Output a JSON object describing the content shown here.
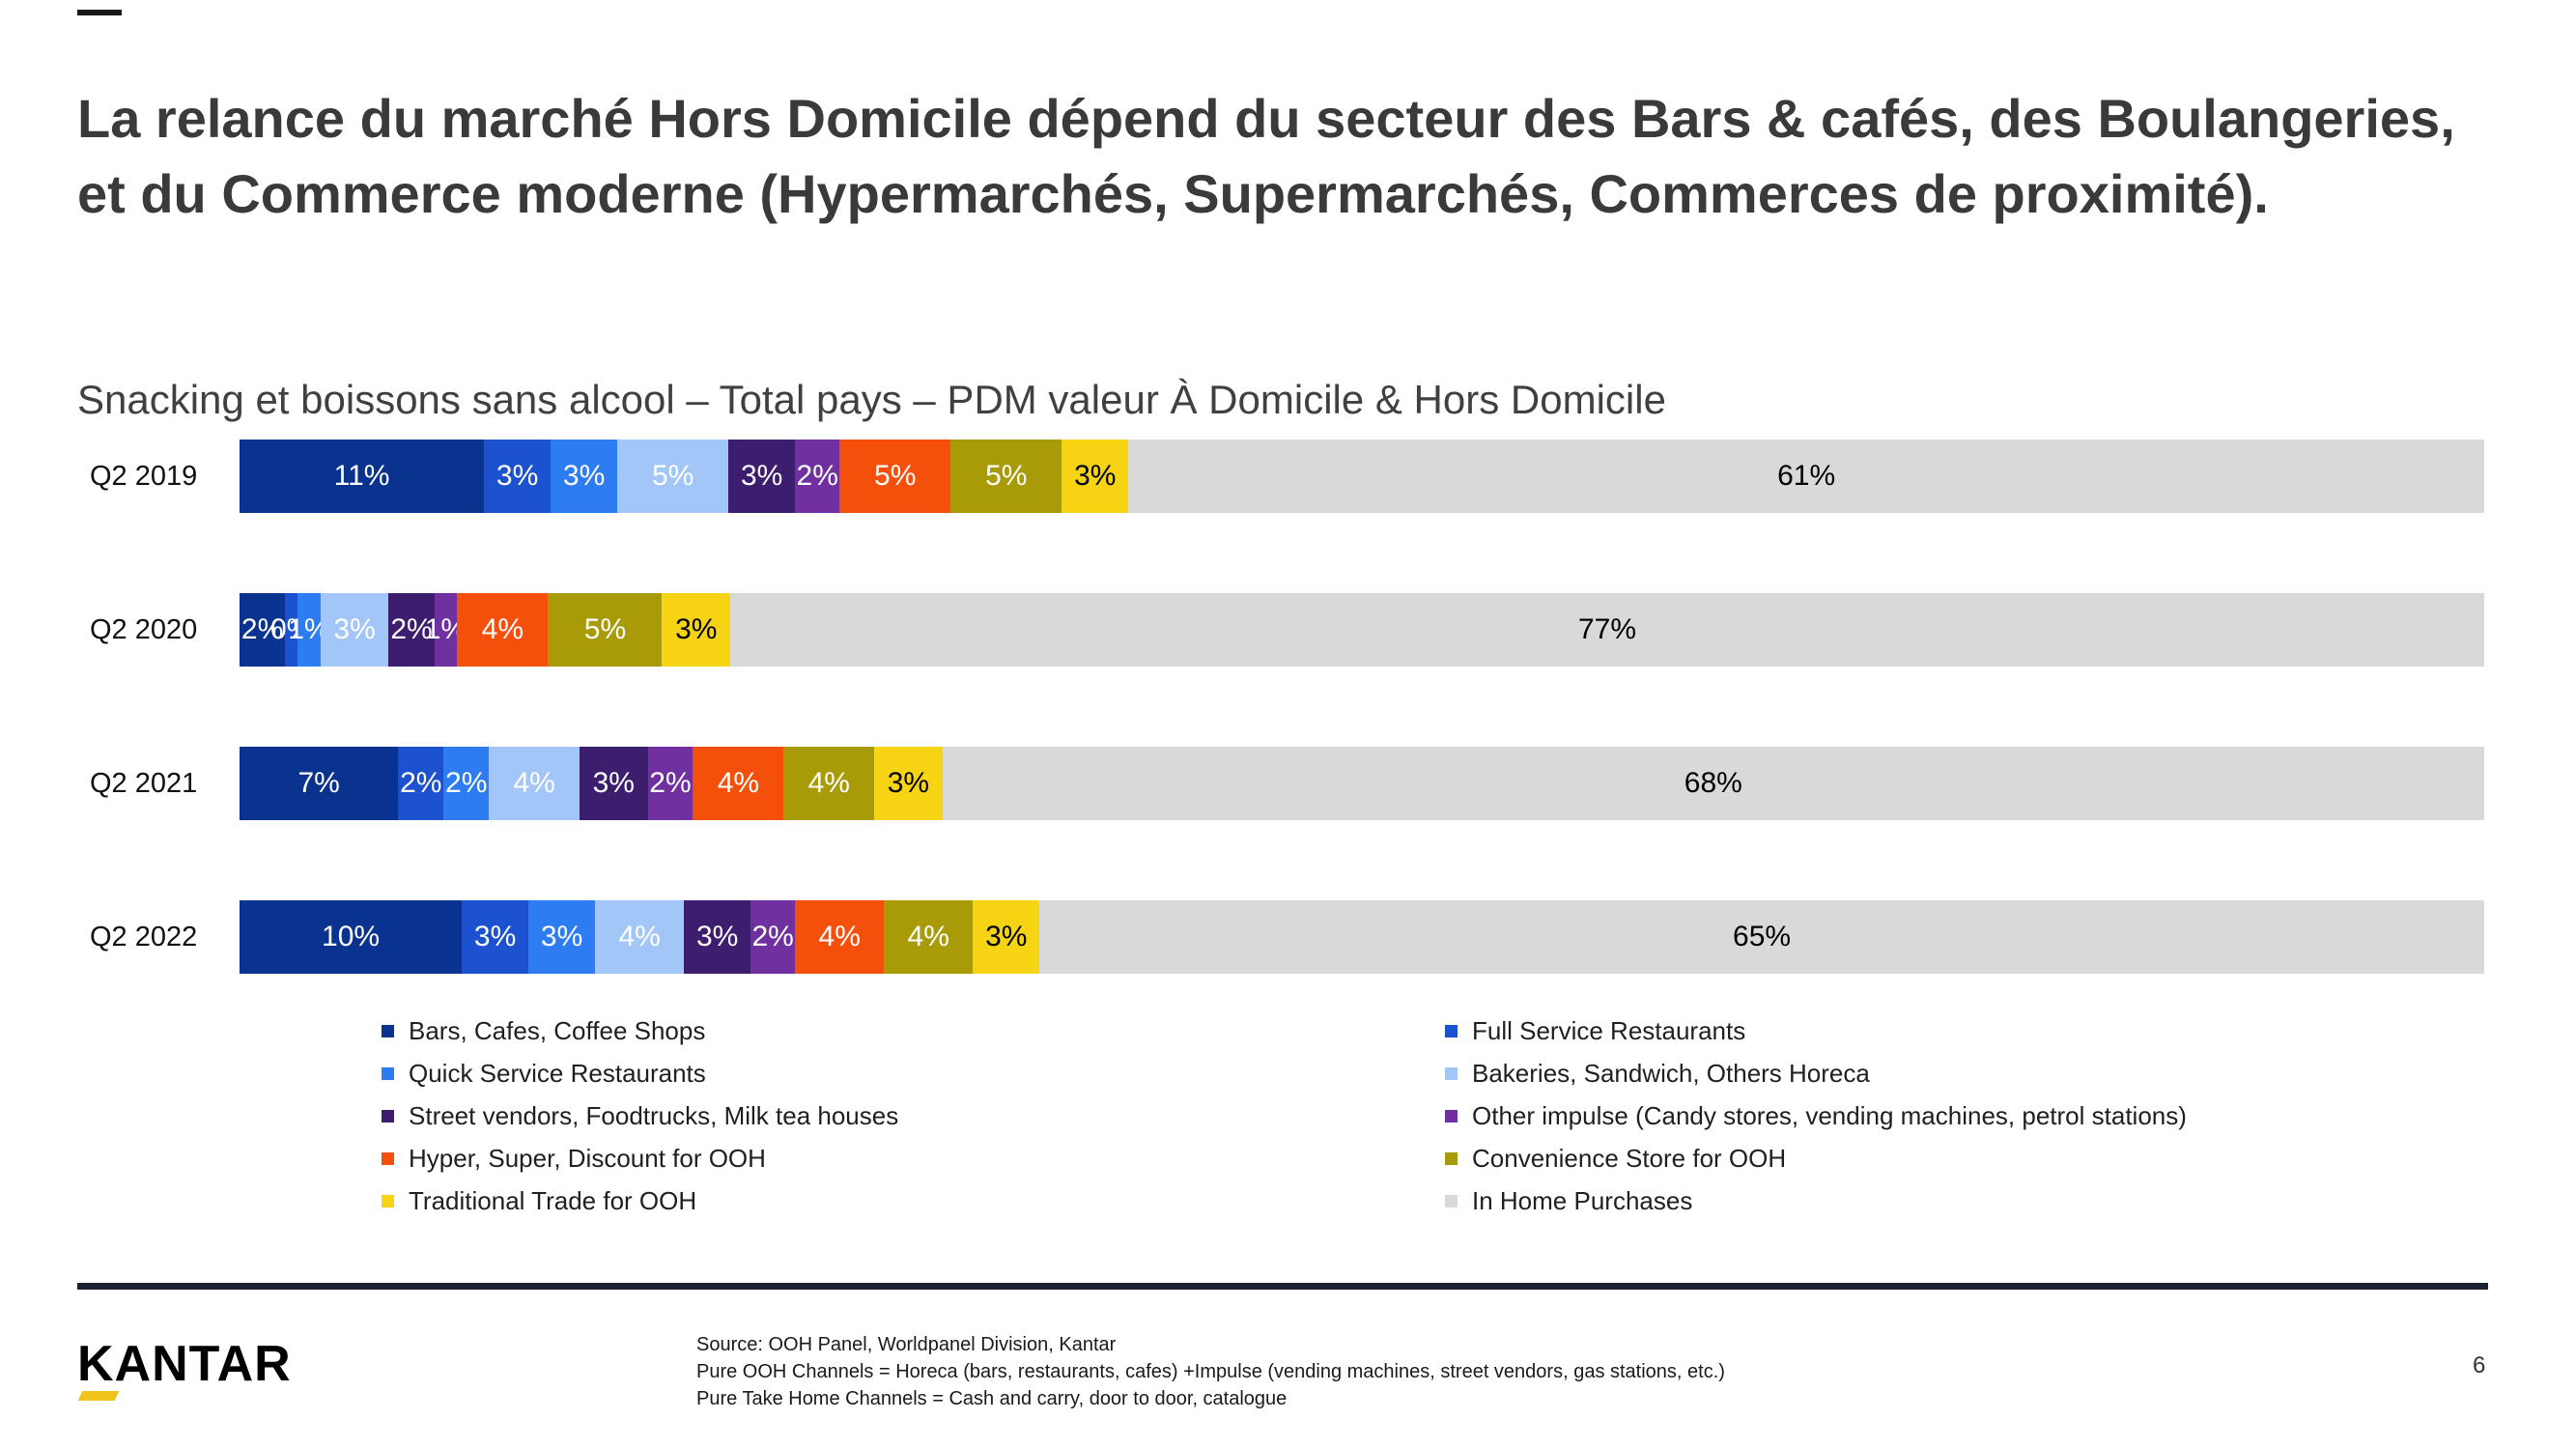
{
  "slide": {
    "title": "La relance du marché Hors Domicile dépend du secteur des Bars & cafés, des Boulangeries, et du Commerce moderne (Hypermarchés, Supermarchés, Commerces de proximité).",
    "subtitle": "Snacking et boissons sans alcool – Total pays – PDM valeur À Domicile & Hors Domicile",
    "page_number": "6"
  },
  "chart_data": {
    "type": "bar",
    "orientation": "horizontal",
    "stacked": true,
    "unit": "%",
    "legend_position": "bottom",
    "categories": [
      "Q2 2019",
      "Q2 2020",
      "Q2 2021",
      "Q2 2022"
    ],
    "series": [
      {
        "name": "Bars, Cafes, Coffee Shops",
        "color": "#0a338f",
        "text_color": "#ffffff",
        "values": [
          11,
          2,
          7,
          10
        ]
      },
      {
        "name": "Full Service Restaurants",
        "color": "#1c51cf",
        "text_color": "#ffffff",
        "values": [
          3,
          0,
          2,
          3
        ]
      },
      {
        "name": "Quick Service Restaurants",
        "color": "#2d7cf2",
        "text_color": "#ffffff",
        "values": [
          3,
          1,
          2,
          3
        ]
      },
      {
        "name": "Bakeries, Sandwich, Others Horeca",
        "color": "#a3c6f8",
        "text_color": "#ffffff",
        "values": [
          5,
          3,
          4,
          4
        ]
      },
      {
        "name": "Street vendors, Foodtrucks, Milk tea houses",
        "color": "#3d1d6d",
        "text_color": "#ffffff",
        "values": [
          3,
          2,
          3,
          3
        ]
      },
      {
        "name": "Other impulse (Candy stores, vending machines, petrol stations)",
        "color": "#7030a0",
        "text_color": "#ffffff",
        "values": [
          2,
          1,
          2,
          2
        ]
      },
      {
        "name": "Hyper, Super, Discount for OOH",
        "color": "#f4500c",
        "text_color": "#ffffff",
        "values": [
          5,
          4,
          4,
          4
        ]
      },
      {
        "name": "Convenience Store for OOH",
        "color": "#a89b07",
        "text_color": "#ffffff",
        "values": [
          5,
          5,
          4,
          4
        ]
      },
      {
        "name": "Traditional Trade for OOH",
        "color": "#f7d413",
        "text_color": "#000000",
        "values": [
          3,
          3,
          3,
          3
        ]
      },
      {
        "name": "In Home Purchases",
        "color": "#d9d9d9",
        "text_color": "#000000",
        "values": [
          61,
          77,
          68,
          65
        ]
      }
    ],
    "legend_columns": [
      [
        0,
        2,
        4,
        6,
        8
      ],
      [
        1,
        3,
        5,
        7,
        9
      ]
    ]
  },
  "footer": {
    "logo_text": "KANTAR",
    "source_lines": [
      "Source: OOH Panel, Worldpanel Division, Kantar",
      "Pure OOH Channels = Horeca (bars, restaurants, cafes) +Impulse (vending machines, street vendors, gas stations, etc.)",
      "Pure Take Home Channels = Cash and carry, door to door, catalogue"
    ]
  }
}
